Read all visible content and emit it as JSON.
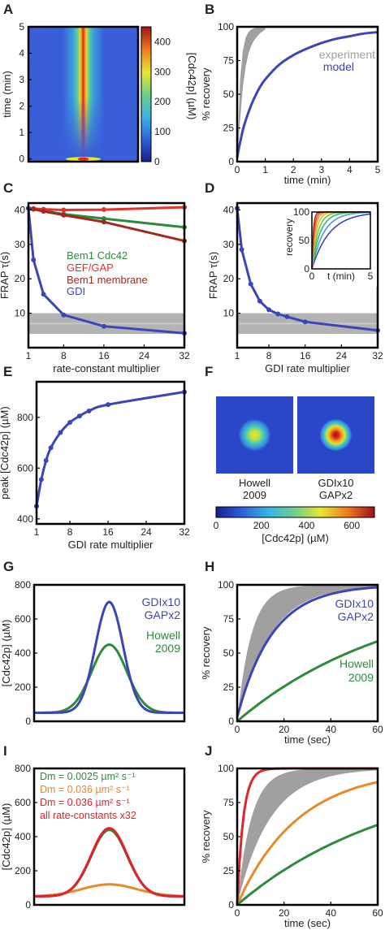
{
  "panels": [
    {
      "label": "A",
      "chart_data": {
        "type": "heatmap",
        "xlabel": "",
        "ylabel": "time (min)",
        "ylim": [
          -0.1,
          5
        ],
        "yticks": [
          0,
          1,
          2,
          3,
          4,
          5
        ],
        "colorbar": {
          "label": "[Cdc42p] (µM)",
          "ticks": [
            0,
            100,
            200,
            300,
            400
          ],
          "range": [
            0,
            450
          ]
        },
        "peak_value": 450,
        "initial_value": 90
      }
    },
    {
      "label": "B",
      "chart_data": {
        "type": "line",
        "xlabel": "time (min)",
        "ylabel": "% recovery",
        "xlim": [
          0,
          5
        ],
        "ylim": [
          0,
          100
        ],
        "xticks": [
          0,
          1,
          2,
          3,
          4,
          5
        ],
        "yticks": [
          0,
          25,
          50,
          75,
          100
        ],
        "series": [
          {
            "name": "model",
            "color": "#3a46b8",
            "x": [
              0,
              0.1,
              0.25,
              0.5,
              0.75,
              1,
              1.5,
              2,
              2.5,
              3,
              3.5,
              4,
              4.5,
              5
            ],
            "y": [
              3,
              14,
              27,
              42,
              53,
              61,
              72,
              79,
              84,
              88,
              91,
              93,
              95,
              96
            ]
          }
        ],
        "band": {
          "name": "experiment",
          "color": "#a0a0a0",
          "x": [
            0,
            0.1,
            0.2,
            0.3,
            0.4,
            0.5,
            0.6,
            0.8,
            1.0
          ],
          "upper": [
            0,
            60,
            82,
            92,
            96,
            98,
            99,
            100,
            100
          ],
          "lower": [
            0,
            30,
            55,
            70,
            80,
            86,
            90,
            95,
            98
          ]
        }
      }
    },
    {
      "label": "C",
      "chart_data": {
        "type": "line",
        "xlabel": "rate-constant multiplier",
        "ylabel": "FRAP τ(s)",
        "xlim": [
          1,
          32
        ],
        "ylim": [
          0,
          42
        ],
        "xticks": [
          1,
          8,
          16,
          24,
          32
        ],
        "yticks": [
          10,
          20,
          30,
          40
        ],
        "hband": [
          4,
          10
        ],
        "series": [
          {
            "name": "Bem1 Cdc42",
            "color": "#2e8b3a",
            "x": [
              1,
              2,
              4,
              8,
              16,
              32
            ],
            "y": [
              40.5,
              40.3,
              39.8,
              38.8,
              37.5,
              35
            ]
          },
          {
            "name": "GEF/GAP",
            "color": "#e0342b",
            "x": [
              1,
              2,
              4,
              8,
              16,
              32
            ],
            "y": [
              40.5,
              40.4,
              40.2,
              40.0,
              40.1,
              40.8
            ]
          },
          {
            "name": "Bem1 membrane",
            "color": "#a0281c",
            "x": [
              1,
              2,
              4,
              8,
              16,
              32
            ],
            "y": [
              40.5,
              40.2,
              39.6,
              38.5,
              36.5,
              31
            ]
          },
          {
            "name": "GDI",
            "color": "#3a46b8",
            "x": [
              1,
              2,
              4,
              8,
              16,
              32
            ],
            "y": [
              40.5,
              25.5,
              15.5,
              9.5,
              6.2,
              4.2
            ]
          }
        ]
      }
    },
    {
      "label": "D",
      "chart_data": {
        "type": "line",
        "xlabel": "GDI rate multiplier",
        "ylabel": "FRAP τ(s)",
        "xlim": [
          1,
          32
        ],
        "ylim": [
          0,
          42
        ],
        "xticks": [
          1,
          8,
          16,
          24,
          32
        ],
        "yticks": [
          10,
          20,
          30,
          40
        ],
        "hband": [
          4,
          10
        ],
        "series": [
          {
            "name": "GDI",
            "color": "#3a46b8",
            "x": [
              1,
              2,
              4,
              6,
              8,
              10,
              12,
              16,
              32
            ],
            "y": [
              40.5,
              28.5,
              18.5,
              13.5,
              11,
              9.8,
              9,
              7.5,
              5
            ]
          }
        ],
        "inset": {
          "xlabel": "t (min)",
          "ylabel": "recovery",
          "xlim": [
            0,
            5
          ],
          "ylim": [
            0,
            100
          ],
          "xticks": [
            0,
            5
          ],
          "yticks": [
            0,
            50,
            100
          ],
          "taus": [
            1.5,
            1.0,
            0.7,
            0.5,
            0.35,
            0.25,
            0.18,
            0.12
          ],
          "colors": [
            "#3a46b8",
            "#4aa0c8",
            "#35b38a",
            "#7fbf3f",
            "#c8c830",
            "#e0a030",
            "#e05a30",
            "#c02020"
          ]
        }
      }
    },
    {
      "label": "E",
      "chart_data": {
        "type": "line",
        "xlabel": "GDI rate multiplier",
        "ylabel": "peak [Cdc42p] (µM)",
        "xlim": [
          1,
          32
        ],
        "ylim": [
          380,
          940
        ],
        "xticks": [
          1,
          8,
          16,
          24,
          32
        ],
        "yticks": [
          400,
          600,
          800
        ],
        "series": [
          {
            "name": "GDI",
            "color": "#3a46b8",
            "x": [
              1,
              2,
              3,
              4,
              6,
              8,
              10,
              12,
              16,
              32
            ],
            "y": [
              450,
              555,
              630,
              680,
              740,
              780,
              805,
              825,
              850,
              900
            ]
          }
        ]
      }
    },
    {
      "label": "F",
      "chart_data": {
        "type": "heatmap",
        "images": [
          {
            "caption_line1": "Howell",
            "caption_line2": "2009",
            "peak": 450
          },
          {
            "caption_line1": "GDIx10",
            "caption_line2": "GAPx2",
            "peak": 700
          }
        ],
        "colorbar": {
          "label": "[Cdc42p] (µM)",
          "ticks": [
            0,
            200,
            400,
            600
          ],
          "range": [
            0,
            700
          ]
        }
      }
    },
    {
      "label": "G",
      "chart_data": {
        "type": "line",
        "xlabel": "",
        "ylabel": "[Cdc42p] (µM)",
        "xlim": [
          -3,
          3
        ],
        "ylim": [
          0,
          800
        ],
        "yticks": [
          0,
          200,
          400,
          600,
          800
        ],
        "series": [
          {
            "name": "GDIx10 GAPx2",
            "color": "#3a46b8",
            "baseline": 50,
            "peak": 700,
            "width": 0.55
          },
          {
            "name": "Howell 2009",
            "color": "#2e8b3a",
            "baseline": 50,
            "peak": 450,
            "width": 0.7
          }
        ],
        "labels": [
          {
            "text": "GDIx10",
            "color": "#3a46b8"
          },
          {
            "text": "GAPx2",
            "color": "#3a46b8"
          },
          {
            "text": "Howell",
            "color": "#2e8b3a"
          },
          {
            "text": "2009",
            "color": "#2e8b3a"
          }
        ]
      }
    },
    {
      "label": "H",
      "chart_data": {
        "type": "line",
        "xlabel": "time (sec)",
        "ylabel": "% recovery",
        "xlim": [
          0,
          60
        ],
        "ylim": [
          0,
          100
        ],
        "xticks": [
          0,
          20,
          40,
          60
        ],
        "yticks": [
          0,
          25,
          50,
          75,
          100
        ],
        "band": {
          "color": "#a0a0a0",
          "tau_fast": 6,
          "tau_slow": 14
        },
        "series": [
          {
            "name": "GDIx10 GAPx2",
            "color": "#3a46b8",
            "tau": 15,
            "y0": 3
          },
          {
            "name": "Howell 2009",
            "color": "#2e8b3a",
            "tau": 68,
            "y0": 0
          }
        ],
        "labels": [
          {
            "text": "GDIx10",
            "color": "#3a46b8"
          },
          {
            "text": "GAPx2",
            "color": "#3a46b8"
          },
          {
            "text": "Howell",
            "color": "#2e8b3a"
          },
          {
            "text": "2009",
            "color": "#2e8b3a"
          }
        ]
      }
    },
    {
      "label": "I",
      "chart_data": {
        "type": "line",
        "xlabel": "",
        "ylabel": "[Cdc42p] (µM)",
        "xlim": [
          -3,
          3
        ],
        "ylim": [
          0,
          800
        ],
        "yticks": [
          0,
          200,
          400,
          600,
          800
        ],
        "series": [
          {
            "name": "Dm = 0.0025 µm² s⁻¹",
            "color": "#2e8b3a",
            "baseline": 50,
            "peak": 440,
            "width": 0.72
          },
          {
            "name": "Dm = 0.036 µm² s⁻¹",
            "color": "#e8892a",
            "baseline": 50,
            "peak": 120,
            "width": 1.1
          },
          {
            "name": "Dm = 0.036 µm² s⁻¹",
            "color": "#e0242b",
            "baseline": 50,
            "peak": 450,
            "width": 0.72
          }
        ],
        "labels": [
          {
            "text": "Dm = 0.0025 µm² s⁻¹",
            "color": "#2e8b3a"
          },
          {
            "text": "Dm = 0.036 µm² s⁻¹",
            "color": "#e8892a"
          },
          {
            "text": "Dm = 0.036 µm² s⁻¹",
            "color": "#e0242b"
          },
          {
            "text": "all rate-constants x32",
            "color": "#e0242b"
          }
        ]
      }
    },
    {
      "label": "J",
      "chart_data": {
        "type": "line",
        "xlabel": "time (sec)",
        "ylabel": "% recovery",
        "xlim": [
          0,
          60
        ],
        "ylim": [
          0,
          100
        ],
        "xticks": [
          0,
          20,
          40,
          60
        ],
        "yticks": [
          0,
          25,
          50,
          75,
          100
        ],
        "band": {
          "color": "#a0a0a0",
          "tau_fast": 6,
          "tau_slow": 14
        },
        "series": [
          {
            "name": "red",
            "color": "#e0242b",
            "tau": 2.6,
            "y0": 0
          },
          {
            "name": "orange",
            "color": "#e8892a",
            "tau": 26,
            "y0": 0
          },
          {
            "name": "green",
            "color": "#2e8b3a",
            "tau": 68,
            "y0": 0
          }
        ]
      }
    }
  ],
  "colors": {
    "frame": "#000000",
    "band": "#a0a0a0"
  }
}
